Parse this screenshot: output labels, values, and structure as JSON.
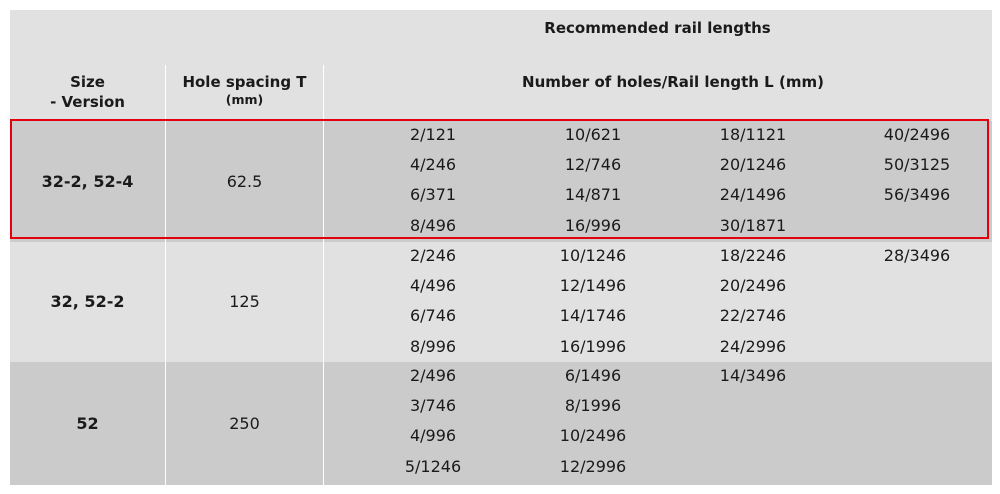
{
  "header": {
    "super_title": "Recommended rail lengths",
    "col_size_line1": "Size",
    "col_size_line2": "- Version",
    "col_spacing": "Hole spacing T",
    "col_spacing_unit": "(mm)",
    "col_lengths": "Number of holes/Rail length L (mm)"
  },
  "groups": [
    {
      "size": "32-2, 52-4",
      "spacing": "62.5",
      "columns": [
        [
          "2/121",
          "4/246",
          "6/371",
          "8/496"
        ],
        [
          "10/621",
          "12/746",
          "14/871",
          "16/996"
        ],
        [
          "18/1121",
          "20/1246",
          "24/1496",
          "30/1871"
        ],
        [
          "40/2496",
          "50/3125",
          "56/3496"
        ]
      ]
    },
    {
      "size": "32, 52-2",
      "spacing": "125",
      "columns": [
        [
          "2/246",
          "4/496",
          "6/746",
          "8/996"
        ],
        [
          "10/1246",
          "12/1496",
          "14/1746",
          "16/1996"
        ],
        [
          "18/2246",
          "20/2496",
          "22/2746",
          "24/2996"
        ],
        [
          "28/3496"
        ]
      ]
    },
    {
      "size": "52",
      "spacing": "250",
      "columns": [
        [
          "2/496",
          "3/746",
          "4/996",
          "5/1246"
        ],
        [
          "6/1496",
          "8/1996",
          "10/2496",
          "12/2996"
        ],
        [
          "14/3496"
        ],
        []
      ]
    }
  ],
  "colors": {
    "band_dark": "#cbcbcb",
    "band_light": "#e1e1e1",
    "highlight": "#e3000f"
  }
}
